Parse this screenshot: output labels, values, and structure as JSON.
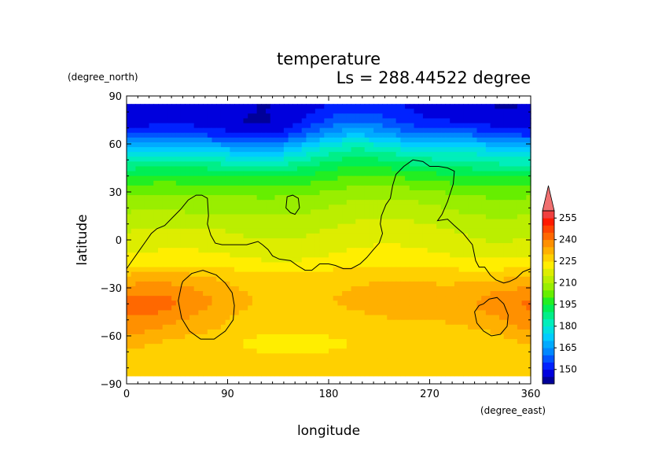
{
  "chart_data": {
    "type": "heatmap",
    "title": "temperature",
    "subtitle": "Ls = 288.44522 degree",
    "xlabel": "longitude",
    "ylabel": "latitude",
    "x_unit": "(degree_east)",
    "y_unit": "(degree_north)",
    "xlim": [
      0,
      360
    ],
    "ylim": [
      -90,
      90
    ],
    "x_ticks": [
      "0",
      "90",
      "180",
      "270",
      "360"
    ],
    "y_ticks": [
      "90",
      "60",
      "30",
      "0",
      "−30",
      "−60",
      "−90"
    ],
    "colorbar": {
      "levels": [
        140,
        145,
        150,
        155,
        160,
        165,
        170,
        175,
        180,
        185,
        190,
        195,
        200,
        205,
        210,
        215,
        220,
        225,
        230,
        235,
        240,
        245,
        250,
        255,
        260
      ],
      "labels": [
        "150",
        "165",
        "180",
        "195",
        "210",
        "225",
        "240",
        "255"
      ],
      "colors": [
        "#000099",
        "#0000dd",
        "#0022ff",
        "#0055ff",
        "#0088ff",
        "#00aaff",
        "#00ccff",
        "#00e0e0",
        "#00eebb",
        "#00ee88",
        "#00ee55",
        "#22ee22",
        "#66ee00",
        "#99ee00",
        "#bbee00",
        "#dded00",
        "#ffee00",
        "#ffd000",
        "#ffb000",
        "#ff9000",
        "#ff6800",
        "#ff4400",
        "#ff1a00",
        "#f04040"
      ],
      "extend_color": "#f07070"
    },
    "temperature_profile": {
      "lat": [
        85,
        75,
        70,
        65,
        60,
        55,
        50,
        45,
        40,
        35,
        30,
        25,
        20,
        15,
        10,
        5,
        0,
        -5,
        -10,
        -15,
        -20,
        -25,
        -30,
        -35,
        -40,
        -45,
        -50,
        -55,
        -60,
        -65,
        -70,
        -75,
        -80,
        -85
      ],
      "value": [
        146,
        147,
        150,
        156,
        166,
        175,
        182,
        189,
        195,
        200,
        204,
        207,
        209,
        211,
        213,
        215,
        216,
        218,
        220,
        222,
        226,
        228,
        229,
        230,
        230,
        229,
        228,
        228,
        227,
        226,
        227,
        228,
        228,
        228
      ]
    }
  }
}
